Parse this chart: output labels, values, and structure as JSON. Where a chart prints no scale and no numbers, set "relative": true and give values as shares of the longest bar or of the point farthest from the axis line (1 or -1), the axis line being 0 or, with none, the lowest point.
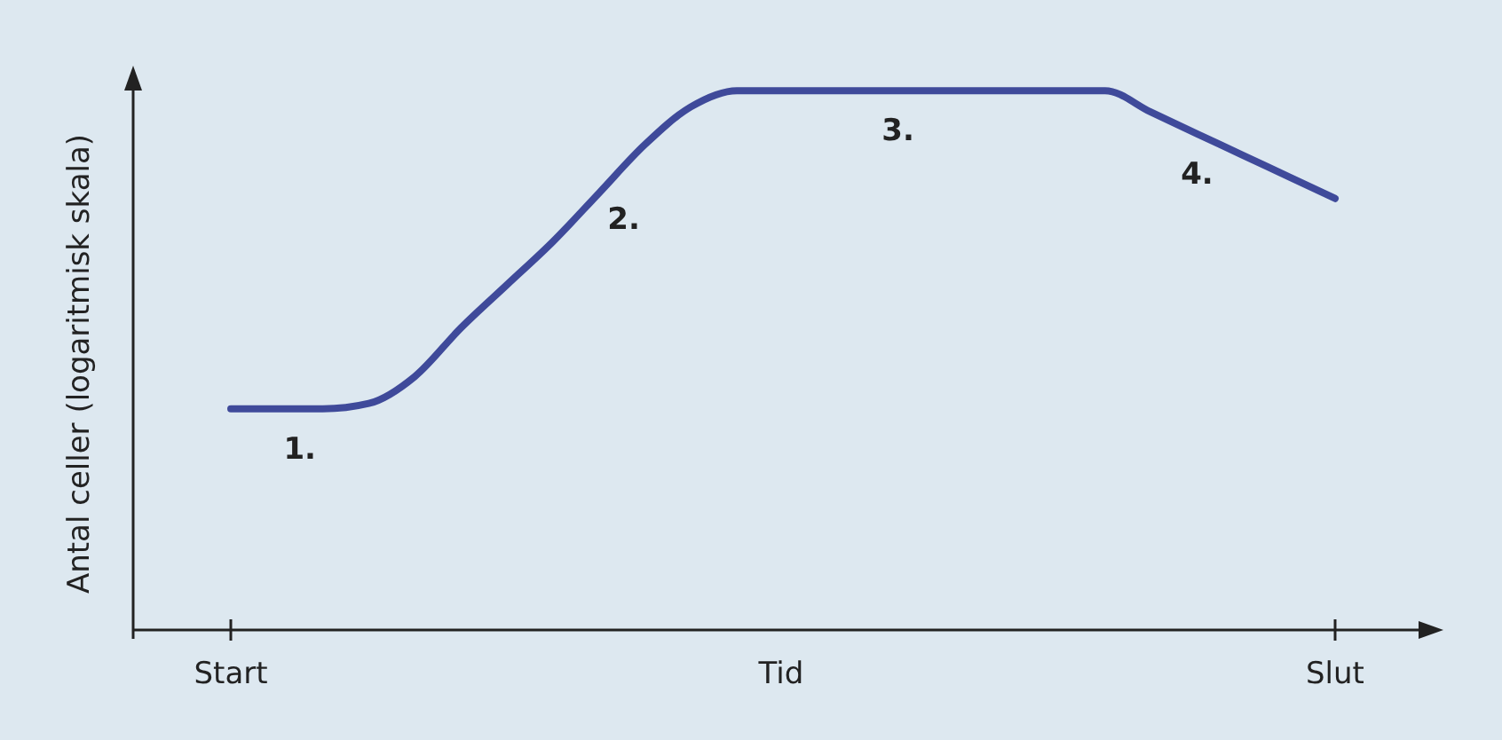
{
  "chart_data": {
    "type": "line",
    "relative": true,
    "xlabel": "Tid",
    "ylabel": "Antal celler (logaritmisk skala)",
    "categories": [
      "Start",
      null,
      null,
      null,
      null,
      null,
      null,
      null,
      null,
      null,
      null,
      null,
      null,
      null,
      null,
      null,
      null,
      null,
      null,
      null,
      null,
      null,
      null,
      null,
      "Slut"
    ],
    "series": [
      {
        "color": "#3f4a9a",
        "values": [
          0.41,
          0.41,
          0.41,
          0.42,
          0.47,
          0.56,
          0.64,
          0.72,
          0.81,
          0.9,
          0.97,
          1,
          1,
          1,
          1,
          1,
          1,
          1,
          1,
          1,
          0.96,
          0.92,
          0.88,
          0.84,
          0.8
        ]
      }
    ],
    "annotations": [
      "1.",
      "2.",
      "3.",
      "4."
    ],
    "marker": "none",
    "line_style": "solid"
  }
}
